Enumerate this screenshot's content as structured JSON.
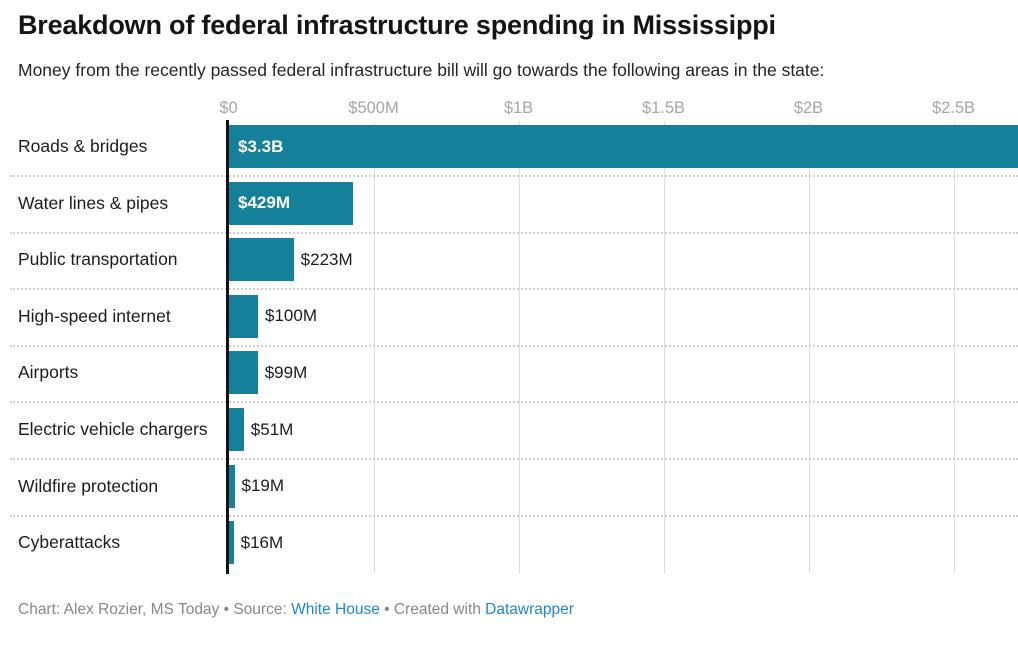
{
  "header": {
    "title": "Breakdown of federal infrastructure spending in Mississippi",
    "subtitle": "Money from the recently passed federal infrastructure bill will go towards the following areas in the state:"
  },
  "chart_data": {
    "type": "bar",
    "orientation": "horizontal",
    "title": "Breakdown of federal infrastructure spending in Mississippi",
    "categories": [
      "Roads & bridges",
      "Water lines & pipes",
      "Public transportation",
      "High-speed internet",
      "Airports",
      "Electric vehicle chargers",
      "Wildfire protection",
      "Cyberattacks"
    ],
    "values_millions": [
      3300,
      429,
      223,
      100,
      99,
      51,
      19,
      16
    ],
    "value_labels": [
      "$3.3B",
      "$429M",
      "$223M",
      "$100M",
      "$99M",
      "$51M",
      "$19M",
      "$16M"
    ],
    "xlabel": "",
    "ylabel": "",
    "x_axis": {
      "tick_labels": [
        "$0",
        "$500M",
        "$1B",
        "$1.5B",
        "$2B",
        "$2.5B"
      ],
      "tick_values_millions": [
        0,
        500,
        1000,
        1500,
        2000,
        2500
      ],
      "xlim_millions": [
        0,
        2724
      ],
      "first_bar_clipped_at_right_edge": true
    },
    "grid": "vertical-gridlines-on",
    "legend": "none"
  },
  "colors": {
    "bar": "#15809a",
    "value_label_inside": "#ffffff",
    "value_label_outside": "#1c1c1c",
    "category_label": "#1c1c1c",
    "tick_label": "#a6a6a6",
    "gridline": "#dddddd",
    "row_separator": "#cfcfcf",
    "axis_line": "#111111",
    "footer_text": "#878787",
    "link": "#1d87d0"
  },
  "footer": {
    "prefix": "Chart: Alex Rozier, MS Today • Source: ",
    "source_link": "White House",
    "middle": " • Created with ",
    "tool_link": "Datawrapper"
  }
}
